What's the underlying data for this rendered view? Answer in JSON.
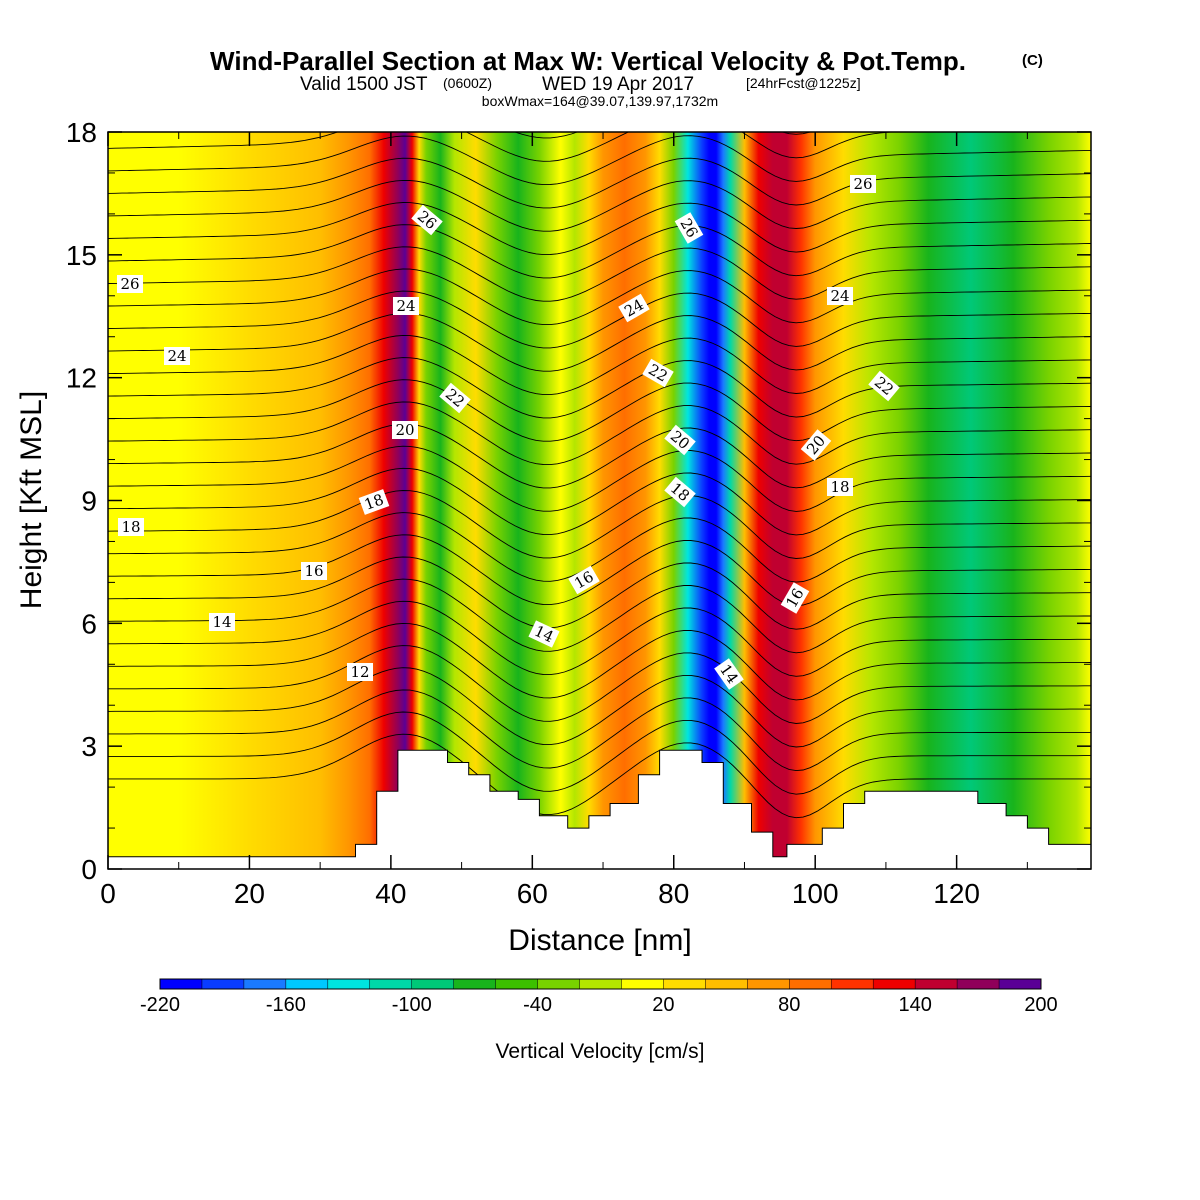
{
  "header": {
    "title": "Wind-Parallel Section at Max W: Vertical Velocity & Pot.Temp.",
    "title_mark": "(C)",
    "valid_prefix": "Valid 1500 JST",
    "valid_utc": "(0600Z)",
    "valid_date": "WED 19 Apr 2017",
    "valid_fcst": "[24hrFcst@1225z]",
    "box_info": "boxWmax=164@39.07,139.97,1732m"
  },
  "chart_data": {
    "type": "heatmap",
    "title": "Wind-Parallel Section at Max W: Vertical Velocity & Pot.Temp.",
    "xlabel": "Distance [nm]",
    "ylabel": "Height [Kft MSL]",
    "xlim": [
      0,
      139
    ],
    "ylim": [
      0,
      18
    ],
    "x_ticks": [
      "0",
      "20",
      "40",
      "60",
      "80",
      "100",
      "120"
    ],
    "x_tick_values": [
      0,
      20,
      40,
      60,
      80,
      100,
      120
    ],
    "y_ticks": [
      "0",
      "3",
      "6",
      "9",
      "12",
      "15",
      "18"
    ],
    "y_tick_values": [
      0,
      3,
      6,
      9,
      12,
      15,
      18
    ],
    "grid": false,
    "colorbar": {
      "label": "Vertical Velocity [cm/s]",
      "min": -220,
      "max": 200,
      "step": 20,
      "tick_labels": [
        "-220",
        "-160",
        "-100",
        "-40",
        "20",
        "80",
        "140",
        "200"
      ],
      "tick_values": [
        -220,
        -160,
        -100,
        -40,
        20,
        80,
        140,
        200
      ],
      "colors": [
        "#0000ff",
        "#0a3cff",
        "#1a7aff",
        "#00c8ff",
        "#00e5e0",
        "#00d8a8",
        "#00c878",
        "#18b41c",
        "#3cc000",
        "#78d200",
        "#b4e600",
        "#ffff00",
        "#ffdc00",
        "#ffbe00",
        "#ff9600",
        "#ff6e00",
        "#ff3200",
        "#ee0000",
        "#c00030",
        "#90005a",
        "#5a0096"
      ]
    },
    "vertical_velocity_profile": {
      "x": [
        0,
        10,
        20,
        30,
        34,
        37,
        39,
        41,
        42,
        43,
        44,
        45,
        47,
        49,
        52,
        55,
        58,
        61,
        64,
        66,
        68,
        70,
        73,
        76,
        78,
        80,
        82,
        84,
        85,
        86,
        87,
        88,
        90,
        92,
        94,
        96,
        98,
        100,
        104,
        108,
        112,
        116,
        122,
        128,
        133,
        137,
        139
      ],
      "values": [
        0,
        10,
        20,
        40,
        60,
        90,
        130,
        170,
        190,
        120,
        30,
        -40,
        -80,
        -20,
        20,
        -30,
        -80,
        -40,
        10,
        -20,
        20,
        60,
        90,
        70,
        20,
        -40,
        -140,
        -200,
        -220,
        -210,
        -180,
        -110,
        40,
        120,
        150,
        140,
        110,
        60,
        20,
        -20,
        -40,
        -80,
        -90,
        -70,
        -40,
        -20,
        0
      ]
    },
    "potential_temperature_labels": [
      "12",
      "14",
      "14",
      "14",
      "16",
      "16",
      "16",
      "18",
      "18",
      "18",
      "18",
      "20",
      "20",
      "20",
      "22",
      "22",
      "22",
      "24",
      "24",
      "24",
      "24",
      "26",
      "26",
      "26",
      "26"
    ],
    "terrain": {
      "x": [
        0,
        35,
        35,
        38,
        38,
        41,
        41,
        48,
        48,
        51,
        51,
        54,
        54,
        58,
        58,
        61,
        61,
        65,
        65,
        68,
        68,
        71,
        71,
        75,
        75,
        78,
        78,
        84,
        84,
        87,
        87,
        91,
        91,
        94,
        94,
        96,
        96,
        101,
        101,
        104,
        104,
        107,
        107,
        123,
        123,
        127,
        127,
        130,
        130,
        133,
        133,
        139
      ],
      "height": [
        0.3,
        0.3,
        0.6,
        0.6,
        1.9,
        1.9,
        2.9,
        2.9,
        2.6,
        2.6,
        2.3,
        2.3,
        1.9,
        1.9,
        1.7,
        1.7,
        1.3,
        1.3,
        1.0,
        1.0,
        1.3,
        1.3,
        1.6,
        1.6,
        2.3,
        2.3,
        2.9,
        2.9,
        2.6,
        2.6,
        1.6,
        1.6,
        0.9,
        0.9,
        0.3,
        0.3,
        0.6,
        0.6,
        1.0,
        1.0,
        1.6,
        1.6,
        1.9,
        1.9,
        1.6,
        1.6,
        1.3,
        1.3,
        1.0,
        1.0,
        0.6,
        0.6
      ]
    }
  }
}
